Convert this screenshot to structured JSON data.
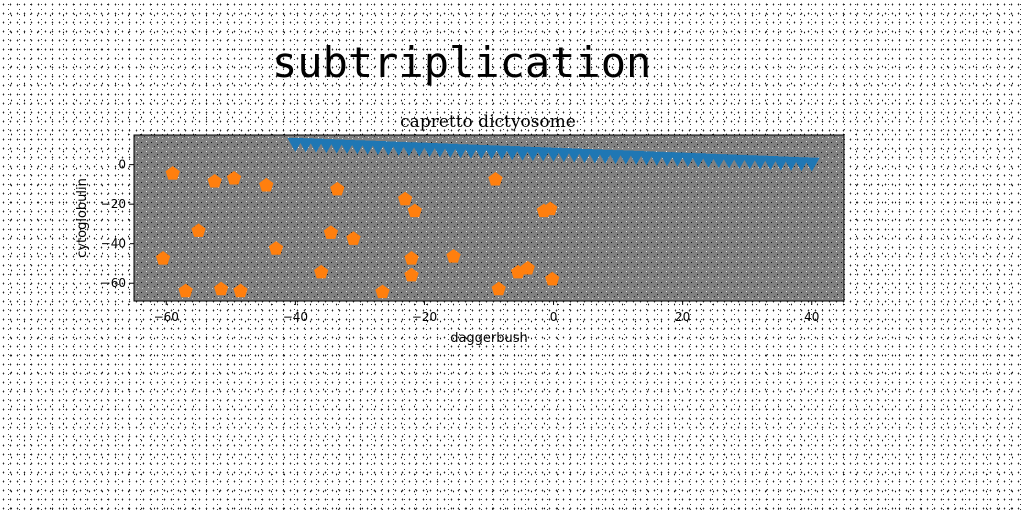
{
  "figure": {
    "title": "subtriplication"
  },
  "chart_data": {
    "type": "scatter",
    "title": "capretto dictyosome",
    "xlabel": "daggerbush",
    "ylabel": "cytoglobulin",
    "xlim": [
      -65,
      45
    ],
    "ylim": [
      -69,
      15
    ],
    "xticks": [
      -60,
      -40,
      -20,
      0,
      20,
      40
    ],
    "yticks": [
      0,
      -20,
      -40,
      -60
    ],
    "grid": false,
    "colors": {
      "plot_bg": "#808080",
      "series_1": "#1f77b4",
      "series_2": "#ff7f0e"
    },
    "series": [
      {
        "marker": "triangle-down",
        "color": "#1f77b4",
        "x": [
          -40,
          -38.4,
          -36.8,
          -35.2,
          -33.6,
          -32,
          -30.4,
          -28.8,
          -27.2,
          -25.6,
          -24,
          -22.4,
          -20.8,
          -19.2,
          -17.6,
          -16,
          -14.4,
          -12.8,
          -11.2,
          -9.6,
          -8,
          -6.4,
          -4.8,
          -3.2,
          -1.6,
          0,
          1.6,
          3.2,
          4.8,
          6.4,
          8,
          9.6,
          11.2,
          12.8,
          14.4,
          16,
          17.6,
          19.2,
          20.8,
          22.4,
          24,
          25.6,
          27.2,
          28.8,
          30.4,
          32,
          33.6,
          35.2,
          36.8,
          38.4,
          40
        ],
        "y": [
          10,
          9.8,
          9.6,
          9.4,
          9.2,
          9,
          8.8,
          8.6,
          8.4,
          8.2,
          8,
          7.8,
          7.6,
          7.4,
          7.2,
          7,
          6.8,
          6.6,
          6.4,
          6.2,
          6,
          5.8,
          5.6,
          5.4,
          5.2,
          5,
          4.8,
          4.6,
          4.4,
          4.2,
          4,
          3.8,
          3.6,
          3.4,
          3.2,
          3,
          2.8,
          2.6,
          2.4,
          2.2,
          2,
          1.8,
          1.6,
          1.4,
          1.2,
          1,
          0.8,
          0.6,
          0.4,
          0.2,
          0
        ]
      },
      {
        "marker": "pentagon",
        "color": "#ff7f0e",
        "x": [
          -59,
          -52.5,
          -49.5,
          -44.5,
          -33.5,
          -23,
          -21.5,
          -9,
          -1.5,
          -0.5,
          -55,
          -43,
          -34.5,
          -31,
          -60.5,
          -36,
          -22,
          -15.5,
          -22,
          -5.5,
          -4,
          -0.2,
          -57,
          -51.5,
          -48.5,
          -26.5,
          -8.5
        ],
        "y": [
          -4.5,
          -8.5,
          -7,
          -10.5,
          -12.5,
          -17.5,
          -23.5,
          -7.5,
          -23.5,
          -22.5,
          -33.5,
          -42.5,
          -34.5,
          -37.5,
          -47.5,
          -54.5,
          -47.5,
          -46.5,
          -56,
          -54.5,
          -52.5,
          -58,
          -64,
          -63,
          -64,
          -64.5,
          -63
        ]
      }
    ]
  }
}
